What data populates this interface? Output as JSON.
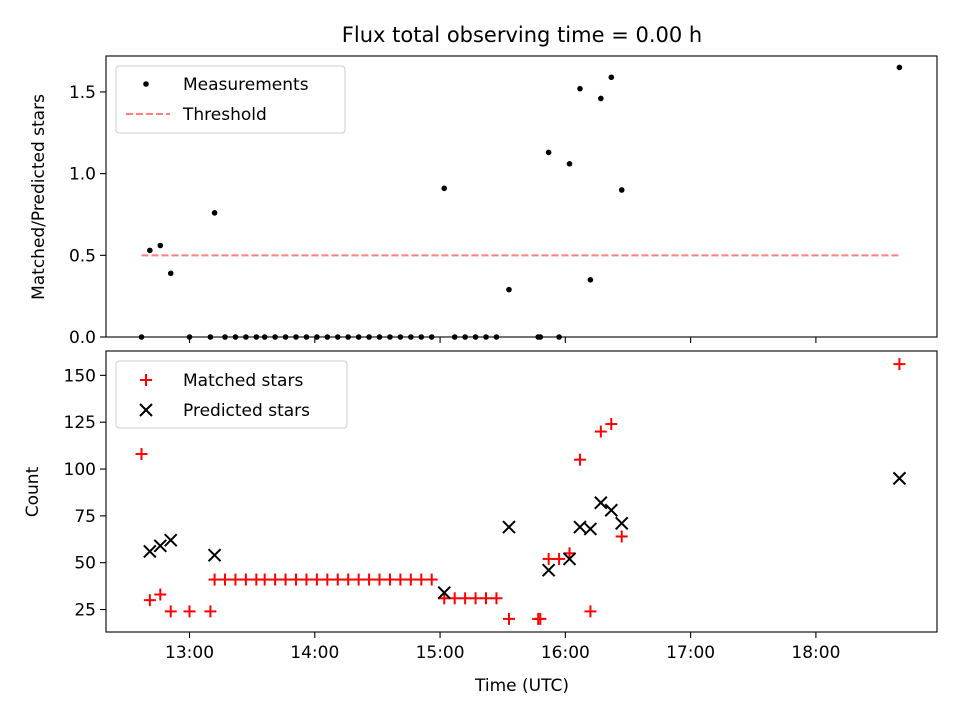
{
  "title": "Flux total observing time = 0.00 h",
  "colors": {
    "measurements": "#000000",
    "threshold": "#ff0000",
    "matched": "#ff0000",
    "predicted": "#000000"
  },
  "chart_data": [
    {
      "type": "scatter",
      "ylabel": "Matched/Predicted stars",
      "xlabel": "",
      "ylim": [
        0,
        1.72
      ],
      "xlim": [
        "12:20",
        "18:58"
      ],
      "yticks": [
        "0.0",
        "0.5",
        "1.0",
        "1.5"
      ],
      "ytick_values": [
        0,
        0.5,
        1.0,
        1.5
      ],
      "legend_position": "upper-left",
      "series": [
        {
          "name": "Measurements",
          "marker": "dot",
          "points": [
            [
              "12:37",
              0.0
            ],
            [
              "12:41",
              0.53
            ],
            [
              "12:46",
              0.56
            ],
            [
              "12:51",
              0.39
            ],
            [
              "13:00",
              0.0
            ],
            [
              "13:10",
              0.0
            ],
            [
              "13:12",
              0.76
            ],
            [
              "13:17",
              0.0
            ],
            [
              "13:22",
              0.0
            ],
            [
              "13:27",
              0.0
            ],
            [
              "13:32",
              0.0
            ],
            [
              "13:36",
              0.0
            ],
            [
              "13:41",
              0.0
            ],
            [
              "13:46",
              0.0
            ],
            [
              "13:51",
              0.0
            ],
            [
              "13:56",
              0.0
            ],
            [
              "14:01",
              0.0
            ],
            [
              "14:06",
              0.0
            ],
            [
              "14:11",
              0.0
            ],
            [
              "14:16",
              0.0
            ],
            [
              "14:21",
              0.0
            ],
            [
              "14:26",
              0.0
            ],
            [
              "14:31",
              0.0
            ],
            [
              "14:36",
              0.0
            ],
            [
              "14:41",
              0.0
            ],
            [
              "14:46",
              0.0
            ],
            [
              "14:51",
              0.0
            ],
            [
              "14:56",
              0.0
            ],
            [
              "15:02",
              0.91
            ],
            [
              "15:07",
              0.0
            ],
            [
              "15:12",
              0.0
            ],
            [
              "15:17",
              0.0
            ],
            [
              "15:22",
              0.0
            ],
            [
              "15:27",
              0.0
            ],
            [
              "15:33",
              0.29
            ],
            [
              "15:47",
              0.0
            ],
            [
              "15:48",
              0.0
            ],
            [
              "15:52",
              1.13
            ],
            [
              "15:57",
              0.0
            ],
            [
              "16:02",
              1.06
            ],
            [
              "16:07",
              1.52
            ],
            [
              "16:12",
              0.35
            ],
            [
              "16:17",
              1.46
            ],
            [
              "16:22",
              1.59
            ],
            [
              "16:27",
              0.9
            ],
            [
              "18:40",
              1.65
            ]
          ]
        },
        {
          "name": "Threshold",
          "style": "dashed",
          "points": [
            [
              "12:37",
              0.5
            ],
            [
              "18:40",
              0.5
            ]
          ]
        }
      ]
    },
    {
      "type": "scatter",
      "ylabel": "Count",
      "xlabel": "Time (UTC)",
      "ylim": [
        13,
        163
      ],
      "xlim": [
        "12:20",
        "18:58"
      ],
      "xticks": [
        "13:00",
        "14:00",
        "15:00",
        "16:00",
        "17:00",
        "18:00"
      ],
      "yticks": [
        "25",
        "50",
        "75",
        "100",
        "125",
        "150"
      ],
      "ytick_values": [
        25,
        50,
        75,
        100,
        125,
        150
      ],
      "legend_position": "upper-left",
      "series": [
        {
          "name": "Matched stars",
          "marker": "plus",
          "points": [
            [
              "12:37",
              108
            ],
            [
              "12:41",
              30
            ],
            [
              "12:46",
              33
            ],
            [
              "12:51",
              24
            ],
            [
              "13:00",
              24
            ],
            [
              "13:10",
              24
            ],
            [
              "13:12",
              41
            ],
            [
              "13:17",
              41
            ],
            [
              "13:22",
              41
            ],
            [
              "13:27",
              41
            ],
            [
              "13:32",
              41
            ],
            [
              "13:36",
              41
            ],
            [
              "13:41",
              41
            ],
            [
              "13:46",
              41
            ],
            [
              "13:51",
              41
            ],
            [
              "13:56",
              41
            ],
            [
              "14:01",
              41
            ],
            [
              "14:06",
              41
            ],
            [
              "14:11",
              41
            ],
            [
              "14:16",
              41
            ],
            [
              "14:21",
              41
            ],
            [
              "14:26",
              41
            ],
            [
              "14:31",
              41
            ],
            [
              "14:36",
              41
            ],
            [
              "14:41",
              41
            ],
            [
              "14:46",
              41
            ],
            [
              "14:51",
              41
            ],
            [
              "14:56",
              41
            ],
            [
              "15:02",
              31
            ],
            [
              "15:07",
              31
            ],
            [
              "15:12",
              31
            ],
            [
              "15:17",
              31
            ],
            [
              "15:22",
              31
            ],
            [
              "15:27",
              31
            ],
            [
              "15:33",
              20
            ],
            [
              "15:47",
              20
            ],
            [
              "15:48",
              20
            ],
            [
              "15:52",
              52
            ],
            [
              "15:57",
              52
            ],
            [
              "16:02",
              55
            ],
            [
              "16:07",
              105
            ],
            [
              "16:12",
              24
            ],
            [
              "16:17",
              120
            ],
            [
              "16:22",
              124
            ],
            [
              "16:27",
              64
            ],
            [
              "18:40",
              156
            ]
          ]
        },
        {
          "name": "Predicted stars",
          "marker": "x",
          "points": [
            [
              "12:41",
              56
            ],
            [
              "12:46",
              59
            ],
            [
              "12:51",
              62
            ],
            [
              "13:12",
              54
            ],
            [
              "15:02",
              34
            ],
            [
              "15:33",
              69
            ],
            [
              "15:52",
              46
            ],
            [
              "16:02",
              52
            ],
            [
              "16:07",
              69
            ],
            [
              "16:12",
              68
            ],
            [
              "16:17",
              82
            ],
            [
              "16:22",
              78
            ],
            [
              "16:27",
              71
            ],
            [
              "18:40",
              95
            ]
          ]
        }
      ]
    }
  ]
}
